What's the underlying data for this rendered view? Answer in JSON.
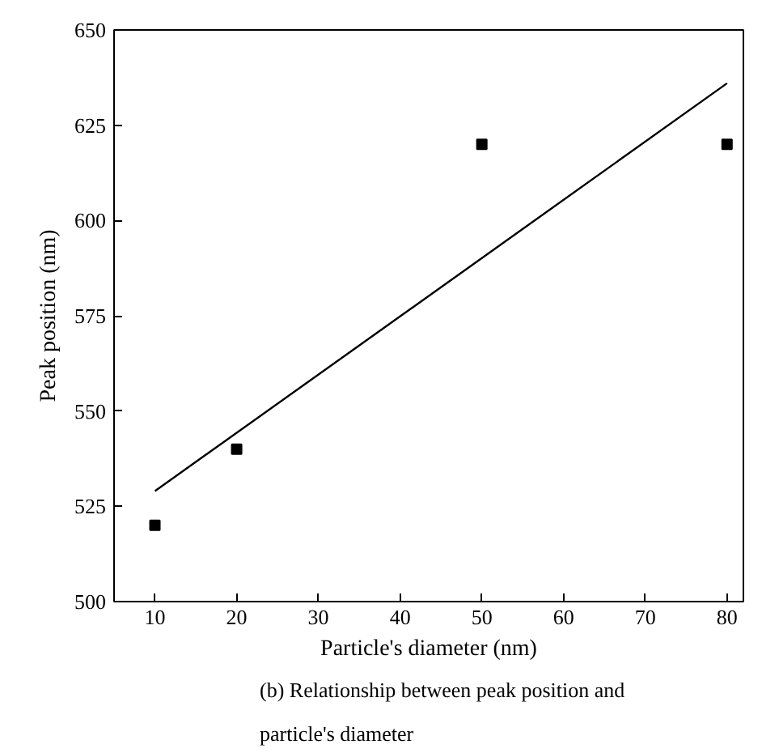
{
  "chart_data": {
    "type": "scatter",
    "xlabel": "Particle's diameter (nm)",
    "ylabel": "Peak position (nm)",
    "annotations": [
      "(b)  Relationship between peak position and",
      "particle's diameter"
    ],
    "series": [
      {
        "type": "scatter",
        "color": "#000000",
        "marker": "square",
        "x": [
          10,
          20,
          50,
          80
        ],
        "values": [
          520,
          540,
          620,
          620
        ]
      },
      {
        "type": "line",
        "color": "#000000",
        "marker": "none",
        "x": [
          10,
          80
        ],
        "values": [
          529,
          636
        ]
      }
    ],
    "xlim": [
      5,
      82
    ],
    "ylim": [
      500,
      650
    ],
    "xticks": [
      10,
      20,
      30,
      40,
      50,
      60,
      70,
      80
    ],
    "yticks": [
      500,
      525,
      550,
      575,
      600,
      625,
      650
    ],
    "grid": false
  }
}
